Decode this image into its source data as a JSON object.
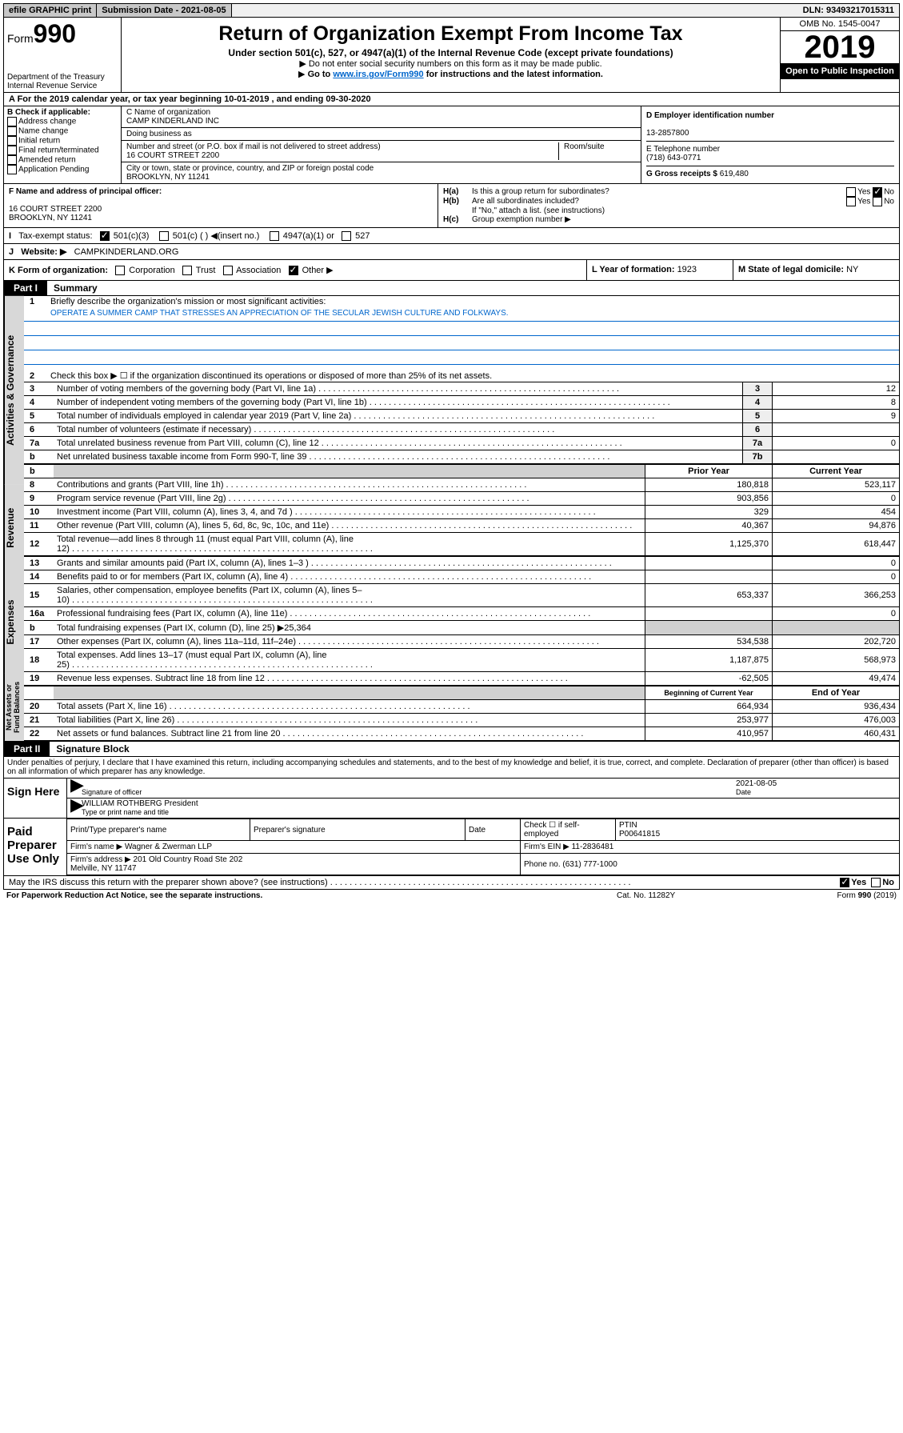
{
  "topbar": {
    "efile": "efile GRAPHIC print",
    "subdate_label": "Submission Date - ",
    "subdate": "2021-08-05",
    "dln_label": "DLN: ",
    "dln": "93493217015311"
  },
  "header": {
    "form_label": "Form",
    "form_num": "990",
    "dept": "Department of the Treasury\nInternal Revenue Service",
    "title": "Return of Organization Exempt From Income Tax",
    "sub1": "Under section 501(c), 527, or 4947(a)(1) of the Internal Revenue Code (except private foundations)",
    "sub2": "Do not enter social security numbers on this form as it may be made public.",
    "sub3_pre": "Go to ",
    "sub3_link": "www.irs.gov/Form990",
    "sub3_post": " for instructions and the latest information.",
    "omb": "OMB No. 1545-0047",
    "year": "2019",
    "open": "Open to Public Inspection"
  },
  "row_a": "A   For the 2019 calendar year, or tax year beginning 10-01-2019     , and ending 09-30-2020",
  "section_b": {
    "hdr": "B Check if applicable:",
    "items": [
      "Address change",
      "Name change",
      "Initial return",
      "Final return/terminated",
      "Amended return",
      "Application Pending"
    ]
  },
  "section_c": {
    "name_lbl": "C Name of organization",
    "name": "CAMP KINDERLAND INC",
    "dba_lbl": "Doing business as",
    "dba": "",
    "addr_lbl": "Number and street (or P.O. box if mail is not delivered to street address)",
    "room_lbl": "Room/suite",
    "addr": "16 COURT STREET 2200",
    "city_lbl": "City or town, state or province, country, and ZIP or foreign postal code",
    "city": "BROOKLYN, NY  11241"
  },
  "section_d": {
    "ein_lbl": "D Employer identification number",
    "ein": "13-2857800",
    "tel_lbl": "E Telephone number",
    "tel": "(718) 643-0771",
    "gross_lbl": "G Gross receipts $ ",
    "gross": "619,480"
  },
  "section_f": {
    "lbl": "F Name and address of principal officer:",
    "line1": "16 COURT STREET 2200",
    "line2": "BROOKLYN, NY  11241"
  },
  "section_h": {
    "a": "Is this a group return for subordinates?",
    "b": "Are all subordinates included?",
    "b_note": "If \"No,\" attach a list. (see instructions)",
    "c": "Group exemption number ▶",
    "yes": "Yes",
    "no": "No"
  },
  "row_i": {
    "lbl": "Tax-exempt status:",
    "opts": [
      "501(c)(3)",
      "501(c) (   ) ◀(insert no.)",
      "4947(a)(1) or",
      "527"
    ]
  },
  "row_j": {
    "lbl": "Website: ▶",
    "val": "CAMPKINDERLAND.ORG"
  },
  "row_k": {
    "lbl": "K Form of organization:",
    "opts": [
      "Corporation",
      "Trust",
      "Association",
      "Other ▶"
    ]
  },
  "row_l": {
    "lbl": "L Year of formation: ",
    "val": "1923"
  },
  "row_m": {
    "lbl": "M State of legal domicile: ",
    "val": "NY"
  },
  "part1": {
    "tab": "Part I",
    "title": "Summary",
    "vtabs": [
      "Activities & Governance",
      "Revenue",
      "Expenses",
      "Net Assets or Fund Balances"
    ],
    "line1_lbl": "Briefly describe the organization's mission or most significant activities:",
    "line1_val": "OPERATE A SUMMER CAMP THAT STRESSES AN APPRECIATION OF THE SECULAR JEWISH CULTURE AND FOLKWAYS.",
    "line2": "Check this box ▶ ☐  if the organization discontinued its operations or disposed of more than 25% of its net assets.",
    "gov_lines": [
      {
        "n": "3",
        "d": "Number of voting members of the governing body (Part VI, line 1a)",
        "rn": "3",
        "v": "12"
      },
      {
        "n": "4",
        "d": "Number of independent voting members of the governing body (Part VI, line 1b)",
        "rn": "4",
        "v": "8"
      },
      {
        "n": "5",
        "d": "Total number of individuals employed in calendar year 2019 (Part V, line 2a)",
        "rn": "5",
        "v": "9"
      },
      {
        "n": "6",
        "d": "Total number of volunteers (estimate if necessary)",
        "rn": "6",
        "v": ""
      },
      {
        "n": "7a",
        "d": "Total unrelated business revenue from Part VIII, column (C), line 12",
        "rn": "7a",
        "v": "0"
      },
      {
        "n": "b",
        "d": "Net unrelated business taxable income from Form 990-T, line 39",
        "rn": "7b",
        "v": ""
      }
    ],
    "col_hdrs": {
      "prior": "Prior Year",
      "current": "Current Year",
      "begin": "Beginning of Current Year",
      "end": "End of Year"
    },
    "rev_lines": [
      {
        "n": "8",
        "d": "Contributions and grants (Part VIII, line 1h)",
        "p": "180,818",
        "c": "523,117"
      },
      {
        "n": "9",
        "d": "Program service revenue (Part VIII, line 2g)",
        "p": "903,856",
        "c": "0"
      },
      {
        "n": "10",
        "d": "Investment income (Part VIII, column (A), lines 3, 4, and 7d )",
        "p": "329",
        "c": "454"
      },
      {
        "n": "11",
        "d": "Other revenue (Part VIII, column (A), lines 5, 6d, 8c, 9c, 10c, and 11e)",
        "p": "40,367",
        "c": "94,876"
      },
      {
        "n": "12",
        "d": "Total revenue—add lines 8 through 11 (must equal Part VIII, column (A), line 12)",
        "p": "1,125,370",
        "c": "618,447"
      }
    ],
    "exp_lines": [
      {
        "n": "13",
        "d": "Grants and similar amounts paid (Part IX, column (A), lines 1–3 )",
        "p": "",
        "c": "0"
      },
      {
        "n": "14",
        "d": "Benefits paid to or for members (Part IX, column (A), line 4)",
        "p": "",
        "c": "0"
      },
      {
        "n": "15",
        "d": "Salaries, other compensation, employee benefits (Part IX, column (A), lines 5–10)",
        "p": "653,337",
        "c": "366,253"
      },
      {
        "n": "16a",
        "d": "Professional fundraising fees (Part IX, column (A), line 11e)",
        "p": "",
        "c": "0"
      }
    ],
    "line16b": {
      "n": "b",
      "d": "Total fundraising expenses (Part IX, column (D), line 25) ▶",
      "v": "25,364"
    },
    "exp_lines2": [
      {
        "n": "17",
        "d": "Other expenses (Part IX, column (A), lines 11a–11d, 11f–24e)",
        "p": "534,538",
        "c": "202,720"
      },
      {
        "n": "18",
        "d": "Total expenses. Add lines 13–17 (must equal Part IX, column (A), line 25)",
        "p": "1,187,875",
        "c": "568,973"
      },
      {
        "n": "19",
        "d": "Revenue less expenses. Subtract line 18 from line 12",
        "p": "-62,505",
        "c": "49,474"
      }
    ],
    "net_lines": [
      {
        "n": "20",
        "d": "Total assets (Part X, line 16)",
        "p": "664,934",
        "c": "936,434"
      },
      {
        "n": "21",
        "d": "Total liabilities (Part X, line 26)",
        "p": "253,977",
        "c": "476,003"
      },
      {
        "n": "22",
        "d": "Net assets or fund balances. Subtract line 21 from line 20",
        "p": "410,957",
        "c": "460,431"
      }
    ]
  },
  "part2": {
    "tab": "Part II",
    "title": "Signature Block",
    "perjury": "Under penalties of perjury, I declare that I have examined this return, including accompanying schedules and statements, and to the best of my knowledge and belief, it is true, correct, and complete. Declaration of preparer (other than officer) is based on all information of which preparer has any knowledge.",
    "sign_here": "Sign Here",
    "sig_officer": "Signature of officer",
    "sig_date": "2021-08-05",
    "date_lbl": "Date",
    "officer_name": "WILLIAM ROTHBERG President",
    "officer_name_lbl": "Type or print name and title",
    "paid": "Paid Preparer Use Only",
    "prep_name_lbl": "Print/Type preparer's name",
    "prep_sig_lbl": "Preparer's signature",
    "prep_date_lbl": "Date",
    "check_self": "Check ☐ if self-employed",
    "ptin_lbl": "PTIN",
    "ptin": "P00641815",
    "firm_name_lbl": "Firm's name    ▶",
    "firm_name": "Wagner & Zwerman LLP",
    "firm_ein_lbl": "Firm's EIN ▶",
    "firm_ein": "11-2836481",
    "firm_addr_lbl": "Firm's address ▶",
    "firm_addr": "201 Old Country Road Ste 202\nMelville, NY  11747",
    "phone_lbl": "Phone no. ",
    "phone": "(631) 777-1000",
    "discuss": "May the IRS discuss this return with the preparer shown above? (see instructions)",
    "footer_l": "For Paperwork Reduction Act Notice, see the separate instructions.",
    "footer_m": "Cat. No. 11282Y",
    "footer_r": "Form 990 (2019)"
  }
}
